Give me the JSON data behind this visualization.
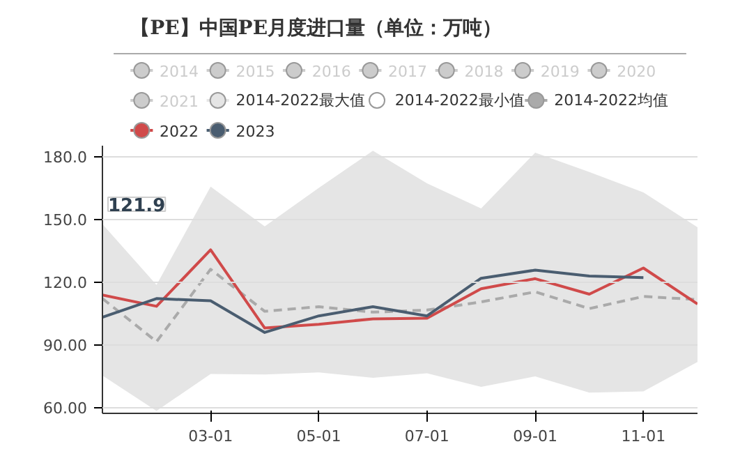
{
  "chart_data": {
    "type": "line",
    "title": "【PE】中国PE月度进口量（单位：万吨）",
    "categories": [
      null,
      null,
      "03-01",
      null,
      "05-01",
      null,
      "07-01",
      null,
      "09-01",
      null,
      "11-01",
      null
    ],
    "ylim": [
      57,
      185
    ],
    "yticks": [
      {
        "value": 60,
        "label": "60.00"
      },
      {
        "value": 90,
        "label": "90.00"
      },
      {
        "value": 120,
        "label": "120.0"
      },
      {
        "value": 150,
        "label": "150.0"
      },
      {
        "value": 180,
        "label": "180.0"
      }
    ],
    "grid": "y",
    "legend": "top",
    "marker": "none",
    "annotations": [
      "121.9"
    ],
    "series": [
      {
        "name": "2014",
        "color": "#cccccc",
        "values": [
          null,
          null,
          null,
          null,
          null,
          null,
          null,
          null,
          null,
          null,
          null,
          null
        ]
      },
      {
        "name": "2015",
        "color": "#cccccc",
        "values": [
          null,
          null,
          null,
          null,
          null,
          null,
          null,
          null,
          null,
          null,
          null,
          null
        ]
      },
      {
        "name": "2016",
        "color": "#cccccc",
        "values": [
          null,
          null,
          null,
          null,
          null,
          null,
          null,
          null,
          null,
          null,
          null,
          null
        ]
      },
      {
        "name": "2017",
        "color": "#cccccc",
        "values": [
          null,
          null,
          null,
          null,
          null,
          null,
          null,
          null,
          null,
          null,
          null,
          null
        ]
      },
      {
        "name": "2018",
        "color": "#cccccc",
        "values": [
          null,
          null,
          null,
          null,
          null,
          null,
          null,
          null,
          null,
          null,
          null,
          null
        ]
      },
      {
        "name": "2019",
        "color": "#cccccc",
        "values": [
          null,
          null,
          null,
          null,
          null,
          null,
          null,
          null,
          null,
          null,
          null,
          null
        ]
      },
      {
        "name": "2020",
        "color": "#cccccc",
        "values": [
          null,
          null,
          null,
          null,
          null,
          null,
          null,
          null,
          null,
          null,
          null,
          null
        ]
      },
      {
        "name": "2021",
        "color": "#cccccc",
        "values": [
          null,
          null,
          null,
          null,
          null,
          null,
          null,
          null,
          null,
          null,
          null,
          null
        ]
      },
      {
        "name": "2014-2022最大值",
        "type": "area",
        "color": "#e5e5e5",
        "values": [
          147.5,
          118.4,
          165.4,
          146.4,
          164.8,
          182.6,
          167,
          155,
          181.7,
          172.4,
          162.7,
          146
        ]
      },
      {
        "name": "2014-2022最小值",
        "type": "area",
        "color": "#ffffff",
        "values": [
          75.1,
          58.2,
          75.8,
          75.6,
          76.6,
          74,
          76.2,
          69.7,
          74.7,
          66.9,
          67.5,
          81.6
        ]
      },
      {
        "name": "2014-2022均值",
        "color": "#aaaaaa",
        "line_style": "dashed",
        "values": [
          111.9,
          91.3,
          125.9,
          105.8,
          108,
          105.4,
          106.4,
          110.3,
          115.1,
          107.1,
          112.9,
          111.4
        ]
      },
      {
        "name": "2022",
        "color": "#d04a4a",
        "values": [
          113.6,
          108.2,
          135.2,
          97.8,
          99.6,
          102.2,
          102.5,
          116.6,
          121.4,
          114,
          126.5,
          109.3
        ]
      },
      {
        "name": "2023",
        "color": "#4a5d70",
        "values": [
          103,
          111.9,
          110.8,
          95.7,
          103.6,
          108,
          103.6,
          121.6,
          125.5,
          122.7,
          121.9,
          null
        ]
      }
    ]
  }
}
